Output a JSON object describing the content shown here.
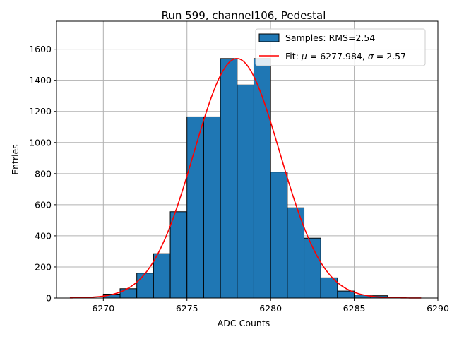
{
  "chart_data": {
    "type": "bar",
    "title": "Run 599, channel106, Pedestal",
    "xlabel": "ADC Counts",
    "ylabel": "Entries",
    "xlim": [
      6267.2,
      6290
    ],
    "ylim": [
      0,
      1780
    ],
    "xticks": [
      6270,
      6275,
      6280,
      6285,
      6290
    ],
    "yticks": [
      0,
      200,
      400,
      600,
      800,
      1000,
      1200,
      1400,
      1600
    ],
    "grid": true,
    "legend_position": "top-right",
    "colors": {
      "bars": "#1f77b4",
      "bar_edge": "#000000",
      "fit": "#ff0000",
      "grid": "#b0b0b0"
    },
    "histogram": {
      "name": "Samples: RMS=2.54",
      "bin_edges": [
        6270,
        6271,
        6272,
        6273,
        6274,
        6275,
        6276,
        6277,
        6278,
        6279,
        6280,
        6281,
        6282,
        6283,
        6284,
        6285,
        6286,
        6287
      ],
      "counts": [
        25,
        60,
        160,
        285,
        555,
        1165,
        1165,
        1540,
        1370,
        1540,
        810,
        580,
        385,
        130,
        45,
        20,
        15
      ]
    },
    "fit": {
      "name_prefix": "Fit: ",
      "name_mu": "μ",
      "name_mid": " = 6277.984, ",
      "name_sigma": "σ",
      "name_suffix": " = 2.57",
      "mu": 6277.984,
      "sigma": 2.57,
      "amplitude": 1540,
      "x_range": [
        6268,
        6289
      ]
    }
  }
}
